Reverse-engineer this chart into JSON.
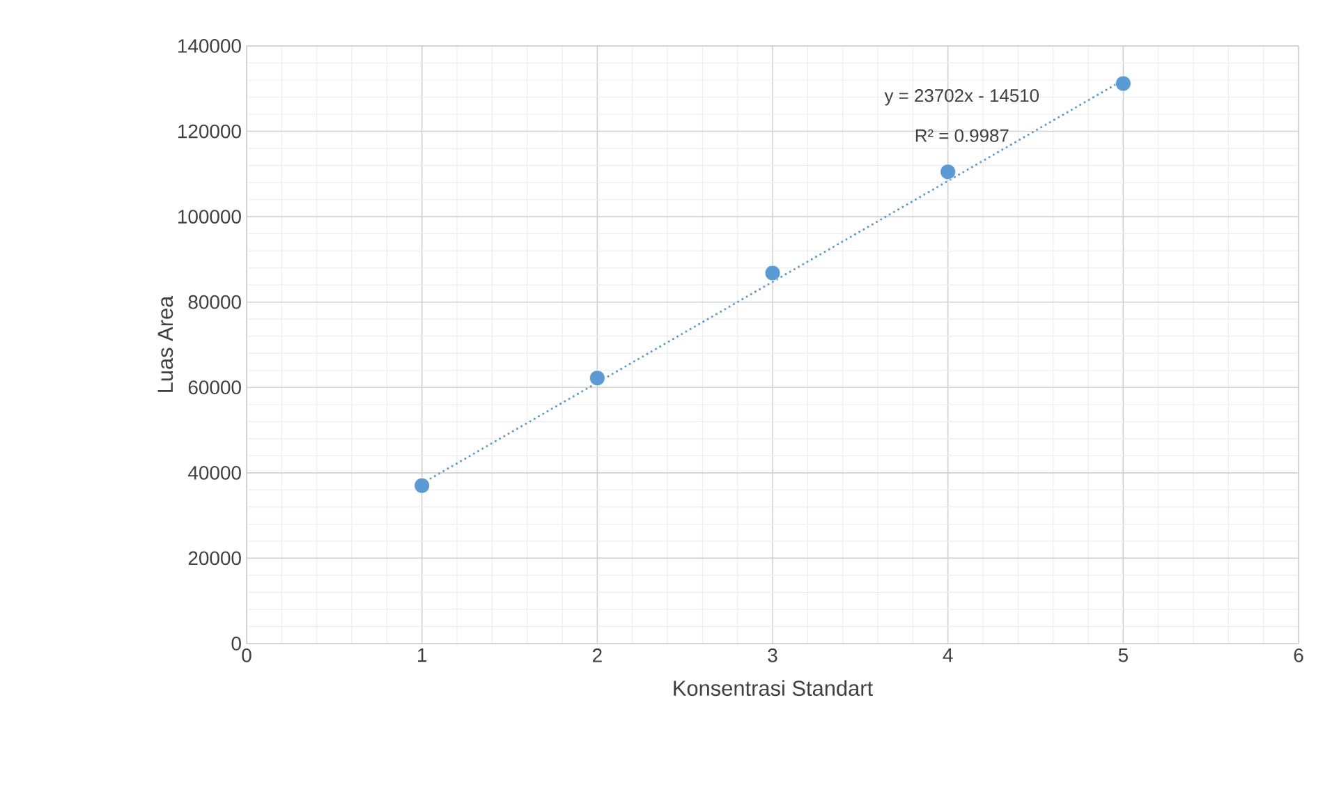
{
  "chart_data": {
    "type": "scatter",
    "xlabel": "Konsentrasi Standart",
    "ylabel": "Luas Area",
    "series": [
      {
        "color": "#5b9bd5",
        "marker": "circle",
        "x": [
          1,
          2,
          3,
          4,
          5
        ],
        "values": [
          37000,
          62200,
          86800,
          110500,
          131200
        ]
      },
      {
        "type": "line",
        "color": "#5b9bd5",
        "line_style": "dotted",
        "x": [
          1,
          5
        ],
        "values": [
          37500,
          132000
        ]
      }
    ],
    "annotations": [
      "y = 23702x - 14510",
      "R² = 0.9987"
    ],
    "xlim": [
      0,
      6
    ],
    "xticks": [
      0,
      1,
      2,
      3,
      4,
      5,
      6
    ],
    "ylim": [
      0,
      140000
    ],
    "yticks": [
      0,
      20000,
      40000,
      60000,
      80000,
      100000,
      120000,
      140000
    ],
    "grid": true
  }
}
